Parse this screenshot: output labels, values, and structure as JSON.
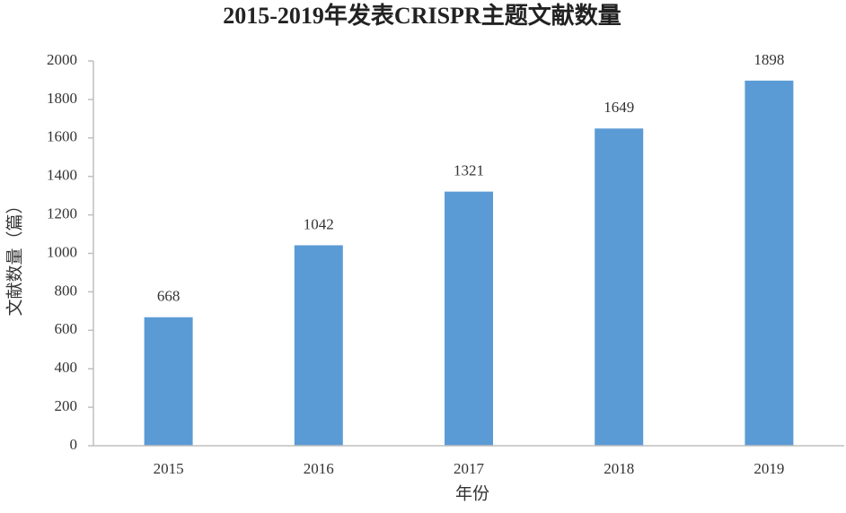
{
  "chart_data": {
    "type": "bar",
    "title": "2015-2019年发表CRISPR主题文献数量",
    "categories": [
      "2015",
      "2016",
      "2017",
      "2018",
      "2019"
    ],
    "values": [
      668,
      1042,
      1321,
      1649,
      1898
    ],
    "color": "#5b9bd5",
    "x_label": "年份",
    "y_label": "文献数量（篇）",
    "ylim": [
      0,
      2000
    ],
    "yticks": [
      0,
      200,
      400,
      600,
      800,
      1000,
      1200,
      1400,
      1600,
      1800,
      2000
    ],
    "grid": false
  }
}
